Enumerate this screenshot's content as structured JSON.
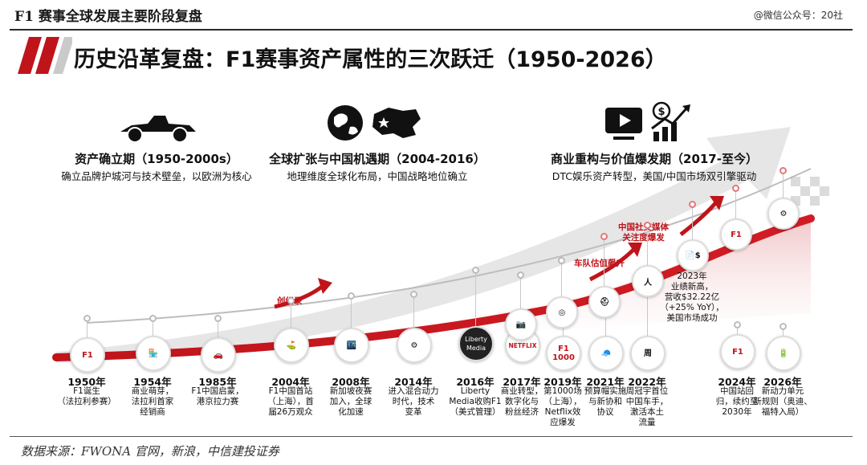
{
  "header": {
    "top_title": "F1 赛事全球发展主要阶段复盘",
    "watermark": "@微信公众号：20社",
    "headline": "历史沿革复盘：F1赛事资产属性的三次跃迁（1950-2026）"
  },
  "phases": [
    {
      "title": "资产确立期（1950-2000s）",
      "desc": "确立品牌护城河与技术壁垒，以欧洲为核心",
      "icon": "vintage-race-car-icon"
    },
    {
      "title": "全球扩张与中国机遇期（2004-2016）",
      "desc": "地理维度全球化布局，中国战略地位确立",
      "icon": "globe-china-map-icon"
    },
    {
      "title": "商业重构与价值爆发期（2017-至今）",
      "desc": "DTC娱乐资产转型，美国/中国市场双引擎驱动",
      "icon": "video-growth-icon"
    }
  ],
  "milestones": [
    {
      "year": "1950年",
      "desc": "F1诞生\n（法拉利参赛）",
      "icon": "f1-logo-icon",
      "badge": "F1"
    },
    {
      "year": "1954年",
      "desc": "商业萌芽，\n法拉利首家\n经销商",
      "icon": "storefront-icon",
      "badge": "🏪"
    },
    {
      "year": "1985年",
      "desc": "F1中国启蒙，\n港京拉力赛",
      "icon": "car-icon",
      "badge": "🚗"
    },
    {
      "year": "2004年",
      "desc": "F1中国首站\n（上海），首\n届26万观众",
      "icon": "shanghai-circuit-icon",
      "badge": "⛳"
    },
    {
      "year": "2008年",
      "desc": "新加坡夜赛\n加入，全球\n化加速",
      "icon": "night-race-icon",
      "badge": "🌃"
    },
    {
      "year": "2014年",
      "desc": "进入混合动力\n时代，技术\n变革",
      "icon": "engine-icon",
      "badge": "⚙"
    },
    {
      "year": "2016年",
      "desc": "Liberty\nMedia收购F1\n（美式管理）",
      "icon": "liberty-media-logo-icon",
      "badge": "Liberty\nMedia"
    },
    {
      "year": "2017年",
      "desc": "商业转型，\n数字化与\n粉丝经济",
      "icon": "netflix-logo-icon",
      "badge": "NETFLIX"
    },
    {
      "year": "2019年",
      "desc": "第1000场\n（上海），\nNetflix效\n应爆发",
      "icon": "f1-1000-logo-icon",
      "badge": "F1\n1000"
    },
    {
      "year": "2021年",
      "desc": "预算帽实施\n与新协和\n协议",
      "icon": "team-cap-icon",
      "badge": "🧢"
    },
    {
      "year": "2022年",
      "desc": "周冠宇首位\n中国车手，\n激活本土\n流量",
      "icon": "driver-photo-icon",
      "badge": "周"
    },
    {
      "year": "2024年",
      "desc": "中国站回\n归，续约至\n2030年",
      "icon": "f1-logo-icon",
      "badge": "F1"
    },
    {
      "year": "2026年",
      "desc": "新动力单元\n新规则（奥迪、\n福特入局）",
      "icon": "battery-power-icon",
      "badge": "🔋"
    }
  ],
  "upper_nodes": [
    {
      "label": "",
      "icon": "social-media-icon",
      "badge": "📷"
    },
    {
      "label": "",
      "icon": "brand-logos-icon",
      "badge": "◎"
    },
    {
      "label": "",
      "icon": "team-helmet-icon",
      "badge": "⛑"
    },
    {
      "label": "",
      "icon": "driver-portrait-icon",
      "badge": "人"
    },
    {
      "label": "2023年\n业绩新高，\n营收$32.22亿\n（+25% YoY），\n美国市场成功",
      "icon": "finance-report-icon",
      "badge": "📄$"
    },
    {
      "label": "",
      "icon": "f1-logo-icon",
      "badge": "F1"
    },
    {
      "label": "",
      "icon": "gear-power-icon",
      "badge": "⚙"
    }
  ],
  "callouts": {
    "record": "创纪录",
    "team_value": "车队估值飙升",
    "social": "中国社交媒体\n关注度爆发"
  },
  "source": "数据来源：FWONA 官网，新浪，中信建投证券",
  "colors": {
    "accent": "#c0141b",
    "grey": "#cfcfcf"
  }
}
